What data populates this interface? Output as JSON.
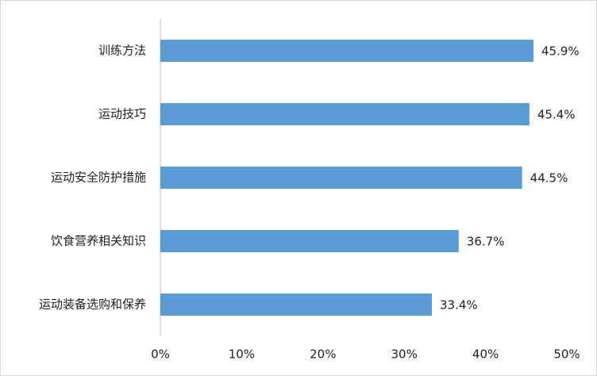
{
  "chart_data": {
    "type": "bar",
    "orientation": "horizontal",
    "categories": [
      "训练方法",
      "运动技巧",
      "运动安全防护措施",
      "饮食营养相关知识",
      "运动装备选购和保养"
    ],
    "values": [
      45.9,
      45.4,
      44.5,
      36.7,
      33.4
    ],
    "value_labels": [
      "45.9%",
      "45.4%",
      "44.5%",
      "36.7%",
      "33.4%"
    ],
    "color": "#5b9bd5",
    "xlim": [
      0,
      50
    ],
    "xticks": [
      {
        "value": 0,
        "label": "0%"
      },
      {
        "value": 10,
        "label": "10%"
      },
      {
        "value": 20,
        "label": "20%"
      },
      {
        "value": 30,
        "label": "30%"
      },
      {
        "value": 40,
        "label": "40%"
      },
      {
        "value": 50,
        "label": "50%"
      }
    ],
    "grid": false
  }
}
